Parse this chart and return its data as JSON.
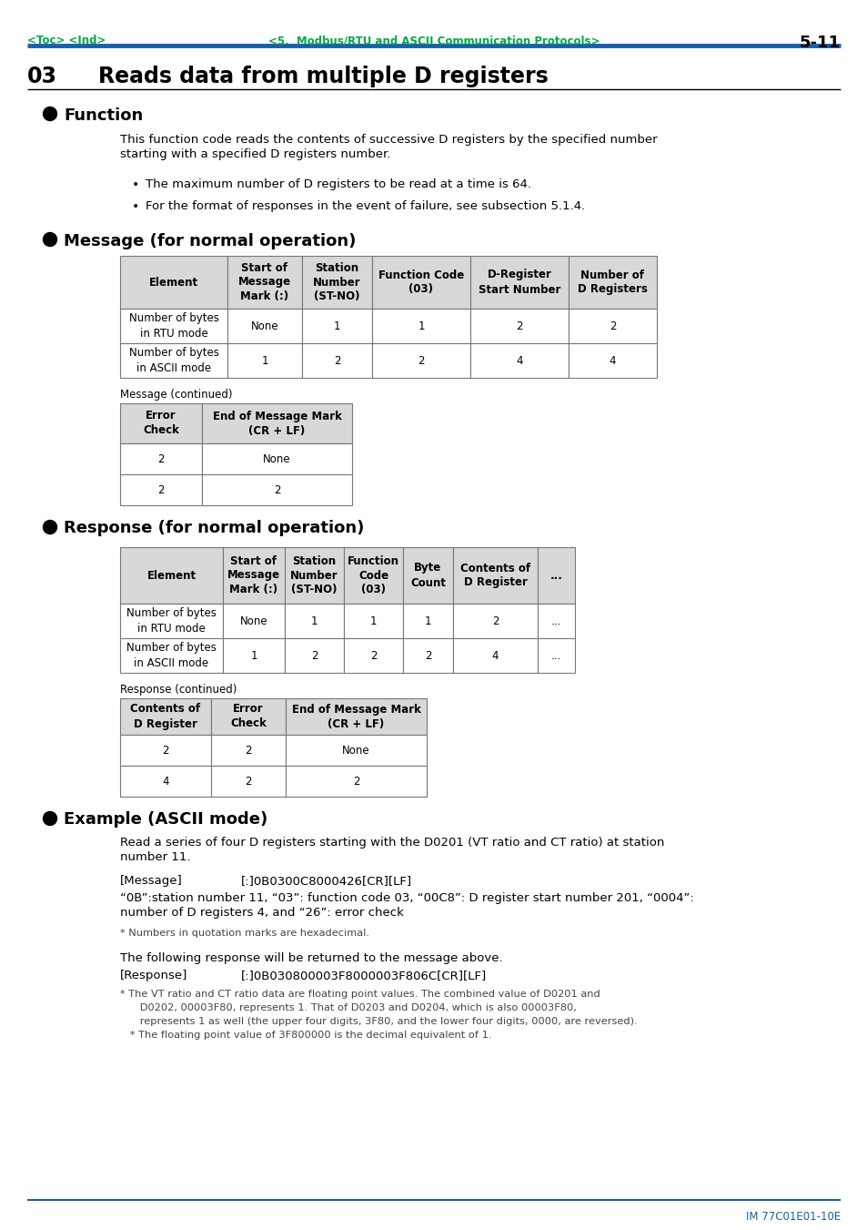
{
  "page_header_left": "<Toc> <Ind>",
  "page_header_center": "<5.  Modbus/RTU and ASCII Communication Protocols>",
  "page_header_right": "5-11",
  "section_number": "03",
  "section_title": "Reads data from multiple D registers",
  "function_title": "Function",
  "function_text1": "This function code reads the contents of successive D registers by the specified number\nstarting with a specified D registers number.",
  "bullet1": "The maximum number of D registers to be read at a time is 64.",
  "bullet2": "For the format of responses in the event of failure, see subsection 5.1.4.",
  "message_title": "Message (for normal operation)",
  "msg_table_headers": [
    "Element",
    "Start of\nMessage\nMark (:)",
    "Station\nNumber\n(ST-NO)",
    "Function Code\n(03)",
    "D-Register\nStart Number",
    "Number of\nD Registers"
  ],
  "msg_table_row1": [
    "Number of bytes\nin RTU mode",
    "None",
    "1",
    "1",
    "2",
    "2"
  ],
  "msg_table_row2": [
    "Number of bytes\nin ASCII mode",
    "1",
    "2",
    "2",
    "4",
    "4"
  ],
  "msg_continued_label": "Message (continued)",
  "msg_cont_headers": [
    "Error\nCheck",
    "End of Message Mark\n(CR + LF)"
  ],
  "msg_cont_row1": [
    "2",
    "None"
  ],
  "msg_cont_row2": [
    "2",
    "2"
  ],
  "response_title": "Response (for normal operation)",
  "resp_table_headers": [
    "Element",
    "Start of\nMessage\nMark (:)",
    "Station\nNumber\n(ST-NO)",
    "Function\nCode\n(03)",
    "Byte\nCount",
    "Contents of\nD Register",
    "..."
  ],
  "resp_table_row1": [
    "Number of bytes\nin RTU mode",
    "None",
    "1",
    "1",
    "1",
    "2",
    "..."
  ],
  "resp_table_row2": [
    "Number of bytes\nin ASCII mode",
    "1",
    "2",
    "2",
    "2",
    "4",
    "..."
  ],
  "resp_continued_label": "Response (continued)",
  "resp_cont_headers": [
    "Contents of\nD Register",
    "Error\nCheck",
    "End of Message Mark\n(CR + LF)"
  ],
  "resp_cont_row1": [
    "2",
    "2",
    "None"
  ],
  "resp_cont_row2": [
    "4",
    "2",
    "2"
  ],
  "example_title": "Example (ASCII mode)",
  "example_text1": "Read a series of four D registers starting with the D0201 (VT ratio and CT ratio) at station\nnumber 11.",
  "example_message_label": "[Message]",
  "example_message_val": "[:]0B0300C8000426[CR][LF]",
  "example_message_desc": "“0B”:station number 11, “03”: function code 03, “00C8”: D register start number 201, “0004”:\nnumber of D registers 4, and “26”: error check",
  "example_note1": "* Numbers in quotation marks are hexadecimal.",
  "example_text2": "The following response will be returned to the message above.",
  "example_response_label": "[Response]",
  "example_response_val": "[:]0B030800003F8000003F806C[CR][LF]",
  "example_note2_line1": "* The VT ratio and CT ratio data are floating point values. The combined value of D0201 and",
  "example_note2_line2": "      D0202, 00003F80, represents 1. That of D0203 and D0204, which is also 00003F80,",
  "example_note2_line3": "      represents 1 as well (the upper four digits, 3F80, and the lower four digits, 0000, are reversed).",
  "example_note2_line4": "   * The floating point value of 3F800000 is the decimal equivalent of 1.",
  "footer_text": "IM 77C01E01-10E",
  "header_color": "#00aa44",
  "header_line_color": "#1a5fa8",
  "footer_color": "#1a5fa8",
  "table_header_bg": "#d8d8d8",
  "table_border_color": "#777777"
}
